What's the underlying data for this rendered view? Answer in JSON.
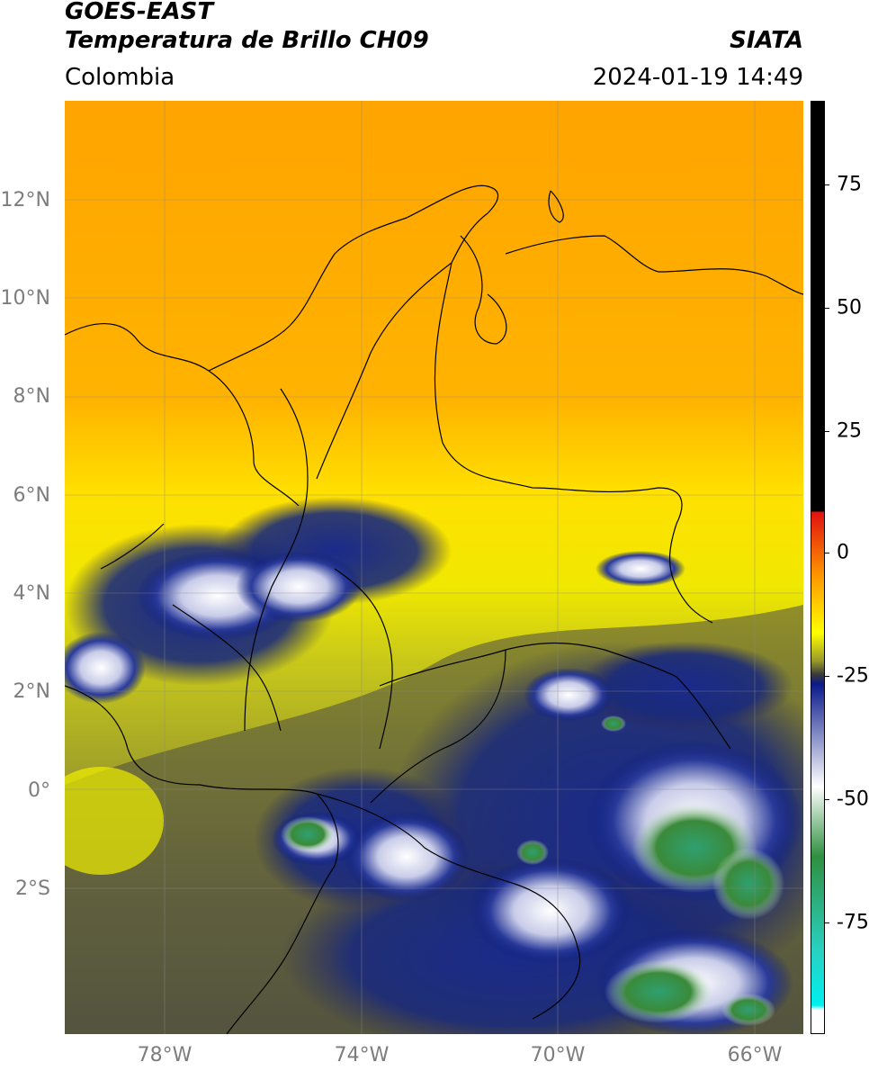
{
  "header": {
    "satellite": "GOES-EAST",
    "product": "Temperatura de Brillo CH09",
    "source": "SIATA",
    "region": "Colombia",
    "datetime": "2024-01-19 14:49"
  },
  "map": {
    "lat_ticks": [
      "12°N",
      "10°N",
      "8°N",
      "6°N",
      "4°N",
      "2°N",
      "0°",
      "2°S"
    ],
    "lon_ticks": [
      "78°W",
      "74°W",
      "70°W",
      "66°W"
    ]
  },
  "colorbar": {
    "ticks": [
      "75",
      "50",
      "25",
      "0",
      "-25",
      "-50",
      "-75"
    ],
    "colors": {
      "black": "#000000",
      "red": "#e01010",
      "orange": "#ff9900",
      "yellow": "#ffff00",
      "olive": "#9a9a2a",
      "dark_gray": "#3a3a3a",
      "navy": "#0a1a8a",
      "white": "#ffffff",
      "green": "#2f8f3f",
      "teal": "#2ad0c0",
      "cyan": "#00f0f0"
    }
  }
}
